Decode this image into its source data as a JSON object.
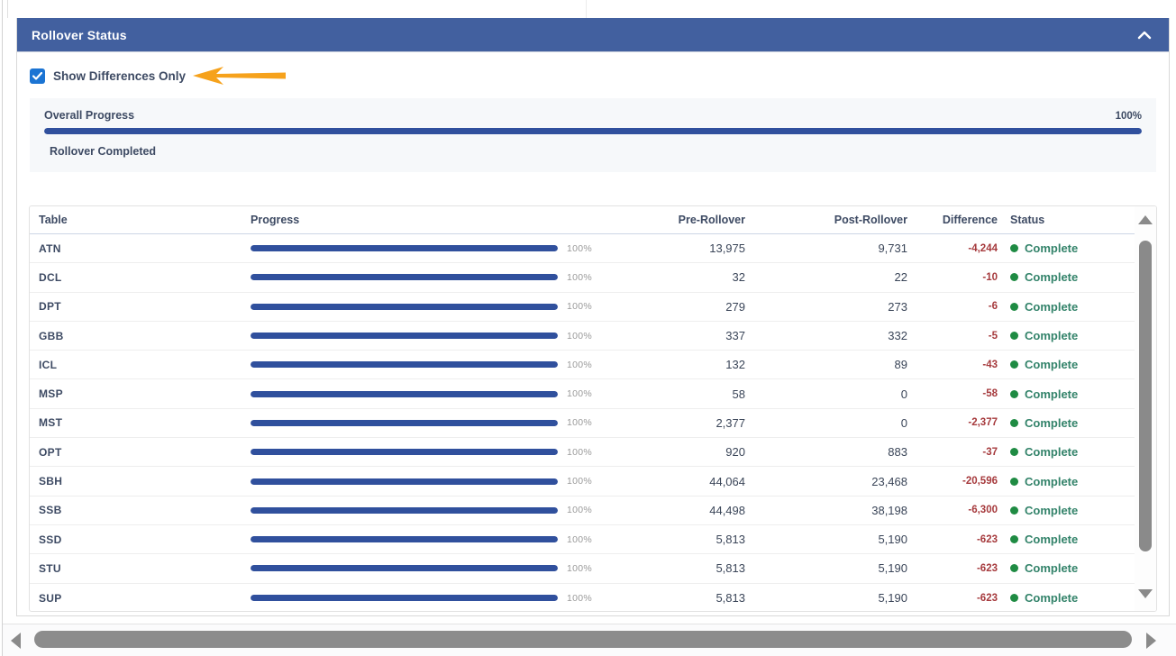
{
  "panel": {
    "title": "Rollover Status",
    "collapse_icon": "chevron-up-icon"
  },
  "controls": {
    "show_differences": {
      "label": "Show Differences Only",
      "checked": true
    }
  },
  "overall": {
    "label": "Overall Progress",
    "percent": 100,
    "percent_label": "100%",
    "status": "Rollover Completed"
  },
  "table": {
    "columns": [
      "Table",
      "Progress",
      "Pre-Rollover",
      "Post-Rollover",
      "Difference",
      "Status"
    ],
    "rows": [
      {
        "name": "ATN",
        "progress_pct": 100,
        "progress_label": "100%",
        "pre": "13,975",
        "post": "9,731",
        "diff": "-4,244",
        "status": "Complete"
      },
      {
        "name": "DCL",
        "progress_pct": 100,
        "progress_label": "100%",
        "pre": "32",
        "post": "22",
        "diff": "-10",
        "status": "Complete"
      },
      {
        "name": "DPT",
        "progress_pct": 100,
        "progress_label": "100%",
        "pre": "279",
        "post": "273",
        "diff": "-6",
        "status": "Complete"
      },
      {
        "name": "GBB",
        "progress_pct": 100,
        "progress_label": "100%",
        "pre": "337",
        "post": "332",
        "diff": "-5",
        "status": "Complete"
      },
      {
        "name": "ICL",
        "progress_pct": 100,
        "progress_label": "100%",
        "pre": "132",
        "post": "89",
        "diff": "-43",
        "status": "Complete"
      },
      {
        "name": "MSP",
        "progress_pct": 100,
        "progress_label": "100%",
        "pre": "58",
        "post": "0",
        "diff": "-58",
        "status": "Complete"
      },
      {
        "name": "MST",
        "progress_pct": 100,
        "progress_label": "100%",
        "pre": "2,377",
        "post": "0",
        "diff": "-2,377",
        "status": "Complete"
      },
      {
        "name": "OPT",
        "progress_pct": 100,
        "progress_label": "100%",
        "pre": "920",
        "post": "883",
        "diff": "-37",
        "status": "Complete"
      },
      {
        "name": "SBH",
        "progress_pct": 100,
        "progress_label": "100%",
        "pre": "44,064",
        "post": "23,468",
        "diff": "-20,596",
        "status": "Complete"
      },
      {
        "name": "SSB",
        "progress_pct": 100,
        "progress_label": "100%",
        "pre": "44,498",
        "post": "38,198",
        "diff": "-6,300",
        "status": "Complete"
      },
      {
        "name": "SSD",
        "progress_pct": 100,
        "progress_label": "100%",
        "pre": "5,813",
        "post": "5,190",
        "diff": "-623",
        "status": "Complete"
      },
      {
        "name": "STU",
        "progress_pct": 100,
        "progress_label": "100%",
        "pre": "5,813",
        "post": "5,190",
        "diff": "-623",
        "status": "Complete"
      },
      {
        "name": "SUP",
        "progress_pct": 100,
        "progress_label": "100%",
        "pre": "5,813",
        "post": "5,190",
        "diff": "-623",
        "status": "Complete"
      }
    ]
  },
  "colors": {
    "header_blue": "#42609f",
    "progress_blue": "#30509d",
    "checkbox_blue": "#1b74d3",
    "difference_red": "#a63a3d",
    "status_green_text": "#33836a",
    "status_green_dot": "#1f8b43",
    "annotation_orange": "#f6a21c",
    "scrollbar_gray": "#8a8a8a"
  }
}
